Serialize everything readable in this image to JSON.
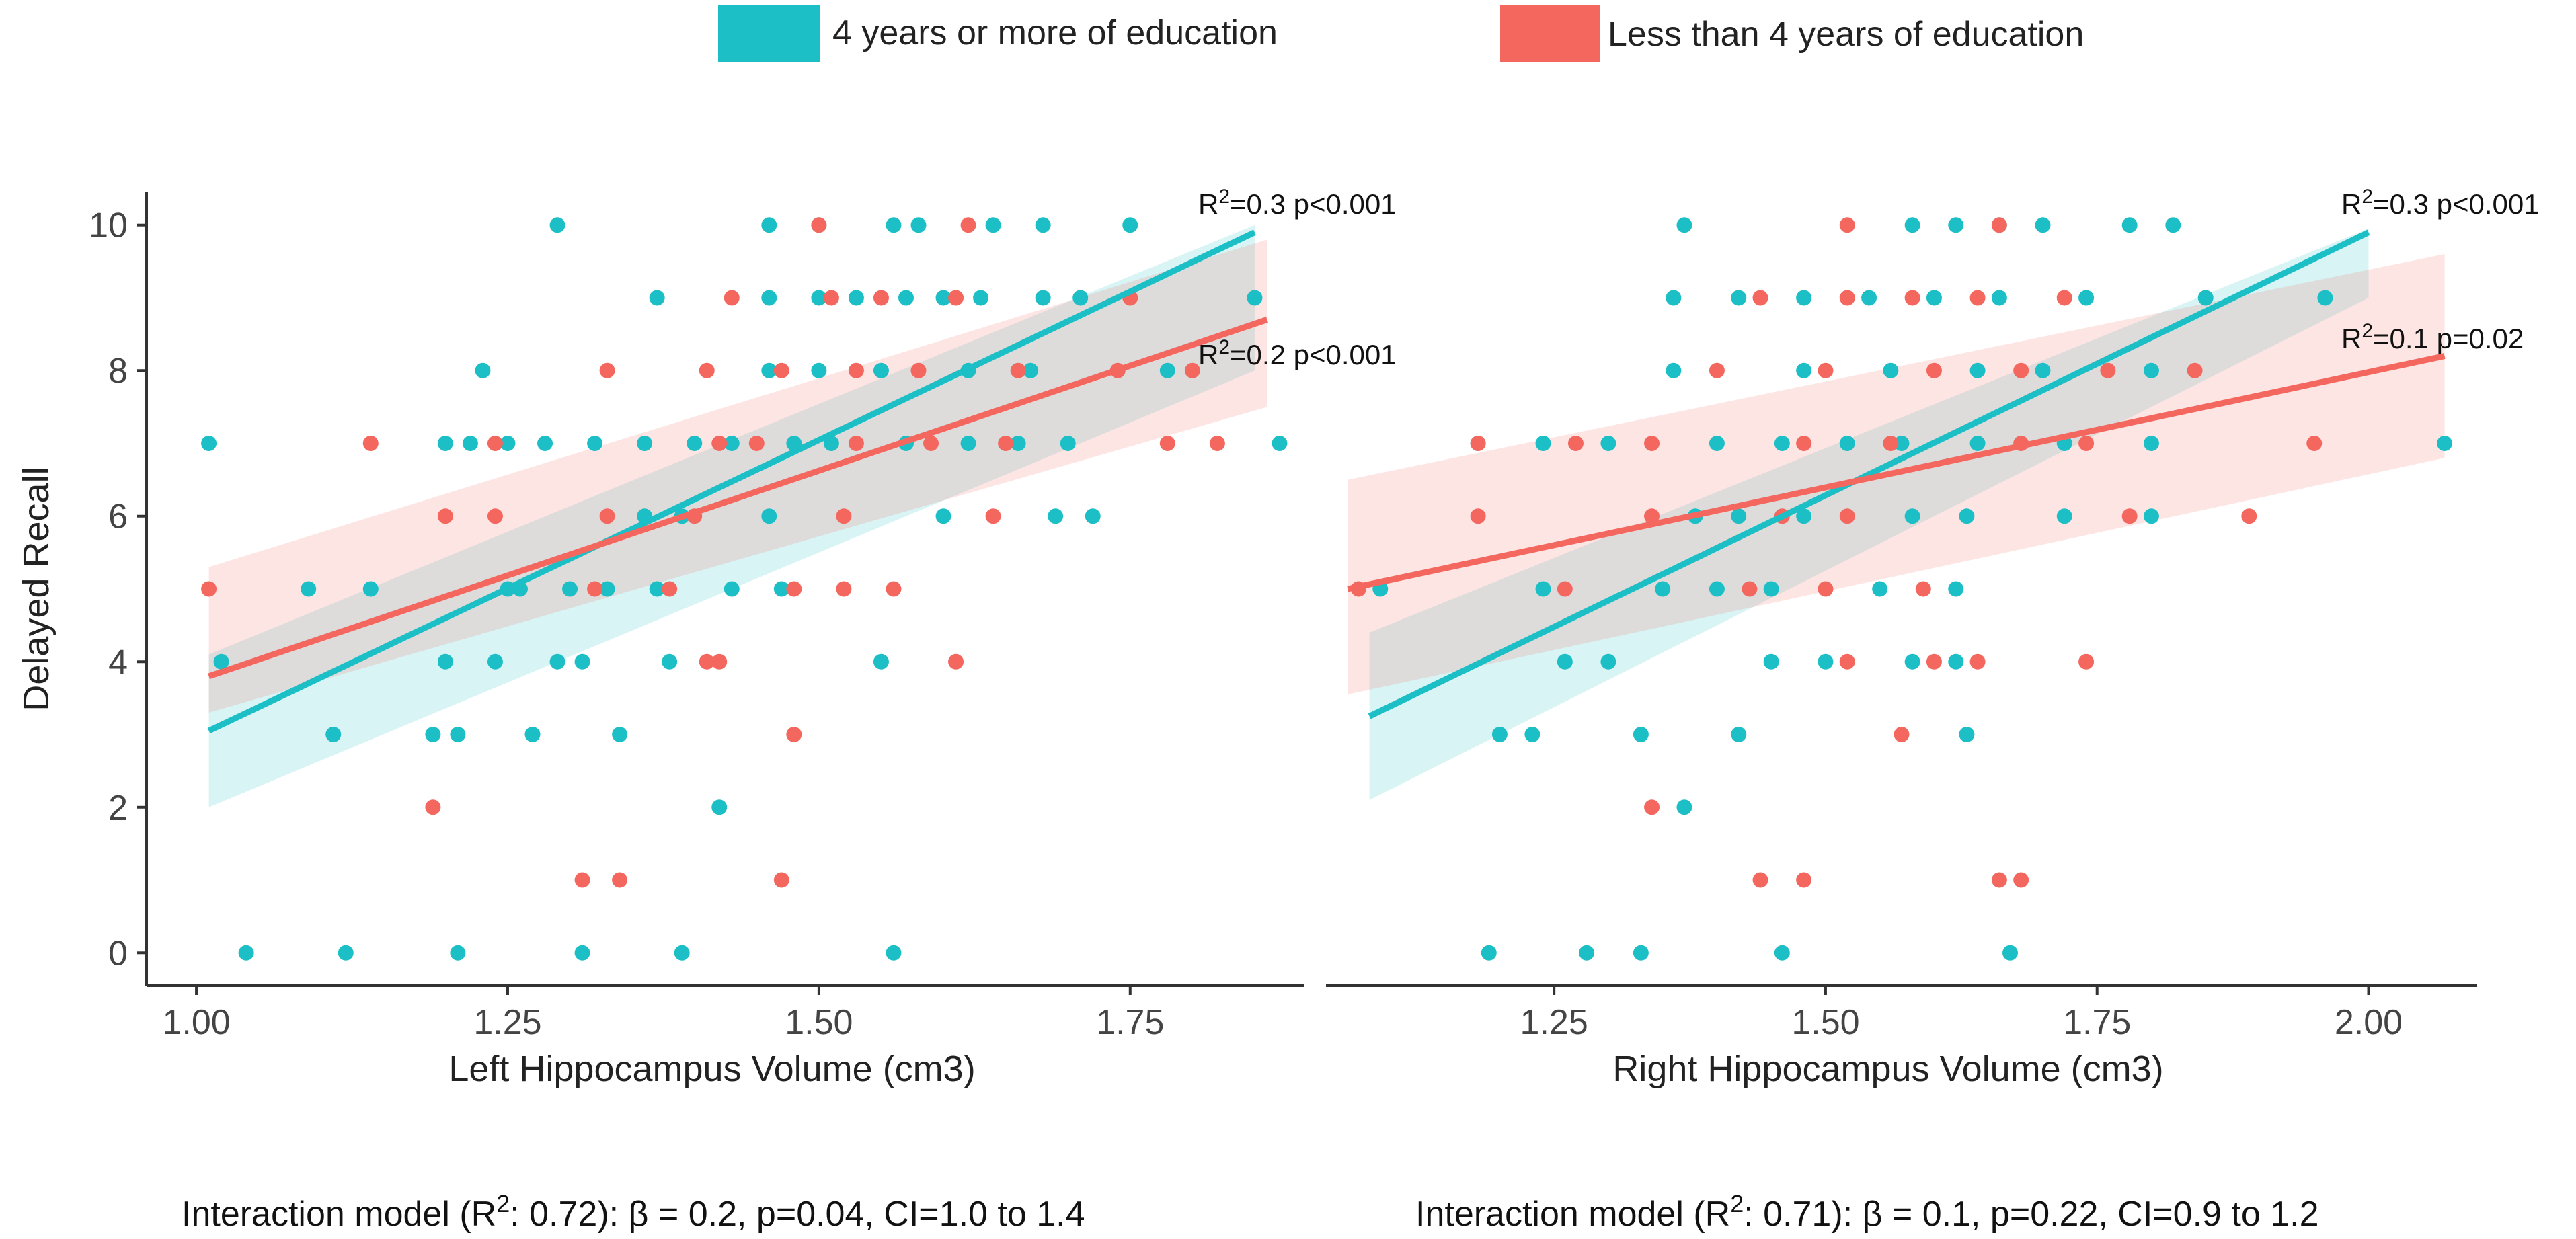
{
  "colors": {
    "edu_high": "#1cbfc5",
    "edu_low": "#f4675f",
    "axis": "#333333"
  },
  "legend": {
    "high_label": "4 years or more of education",
    "low_label": "Less than 4 years of education"
  },
  "footnotes": {
    "left": {
      "prefix": "Interaction model (R",
      "sup": "2",
      "suffix": ": 0.72): β = 0.2, p=0.04, CI=1.0 to 1.4"
    },
    "right": {
      "prefix": "Interaction model (R",
      "sup": "2",
      "suffix": ": 0.71): β = 0.1, p=0.22, CI=0.9 to 1.2"
    }
  },
  "chart_data": [
    {
      "type": "scatter",
      "title": "",
      "xlabel": "Left Hippocampus Volume (cm3)",
      "ylabel": "Delayed Recall",
      "xlim": [
        0.96,
        1.89
      ],
      "ylim": [
        -0.45,
        10.45
      ],
      "xticks": [
        "1.00",
        "1.25",
        "1.50",
        "1.75"
      ],
      "yticks": [
        "0",
        "2",
        "4",
        "6",
        "8",
        "10"
      ],
      "series": [
        {
          "name": "4 years or more of education",
          "fit": {
            "x": [
              1.01,
              1.85
            ],
            "y": [
              3.05,
              9.9
            ],
            "ci_lo": [
              2.0,
              8.0
            ],
            "ci_hi": [
              4.1,
              10.0
            ]
          },
          "annotation": {
            "pre": "R",
            "sup": "2",
            "post": "=0.3 p<0.001"
          },
          "points": [
            [
              1.04,
              0
            ],
            [
              1.12,
              0
            ],
            [
              1.21,
              0
            ],
            [
              1.31,
              0
            ],
            [
              1.39,
              0
            ],
            [
              1.56,
              0
            ],
            [
              1.42,
              2
            ],
            [
              1.11,
              3
            ],
            [
              1.19,
              3
            ],
            [
              1.21,
              3
            ],
            [
              1.27,
              3
            ],
            [
              1.34,
              3
            ],
            [
              1.2,
              4
            ],
            [
              1.24,
              4
            ],
            [
              1.29,
              4
            ],
            [
              1.31,
              4
            ],
            [
              1.38,
              4
            ],
            [
              1.55,
              4
            ],
            [
              1.02,
              4
            ],
            [
              1.09,
              5
            ],
            [
              1.14,
              5
            ],
            [
              1.26,
              5
            ],
            [
              1.3,
              5
            ],
            [
              1.33,
              5
            ],
            [
              1.37,
              5
            ],
            [
              1.43,
              5
            ],
            [
              1.47,
              5
            ],
            [
              1.25,
              5
            ],
            [
              1.36,
              6
            ],
            [
              1.39,
              6
            ],
            [
              1.46,
              6
            ],
            [
              1.6,
              6
            ],
            [
              1.69,
              6
            ],
            [
              1.72,
              6
            ],
            [
              1.01,
              7
            ],
            [
              1.2,
              7
            ],
            [
              1.22,
              7
            ],
            [
              1.25,
              7
            ],
            [
              1.28,
              7
            ],
            [
              1.32,
              7
            ],
            [
              1.36,
              7
            ],
            [
              1.4,
              7
            ],
            [
              1.43,
              7
            ],
            [
              1.48,
              7
            ],
            [
              1.51,
              7
            ],
            [
              1.57,
              7
            ],
            [
              1.62,
              7
            ],
            [
              1.66,
              7
            ],
            [
              1.7,
              7
            ],
            [
              1.87,
              7
            ],
            [
              1.23,
              8
            ],
            [
              1.46,
              8
            ],
            [
              1.5,
              8
            ],
            [
              1.55,
              8
            ],
            [
              1.62,
              8
            ],
            [
              1.67,
              8
            ],
            [
              1.78,
              8
            ],
            [
              1.37,
              9
            ],
            [
              1.46,
              9
            ],
            [
              1.5,
              9
            ],
            [
              1.53,
              9
            ],
            [
              1.57,
              9
            ],
            [
              1.6,
              9
            ],
            [
              1.63,
              9
            ],
            [
              1.68,
              9
            ],
            [
              1.71,
              9
            ],
            [
              1.85,
              9
            ],
            [
              1.29,
              10
            ],
            [
              1.46,
              10
            ],
            [
              1.5,
              10
            ],
            [
              1.56,
              10
            ],
            [
              1.58,
              10
            ],
            [
              1.64,
              10
            ],
            [
              1.68,
              10
            ],
            [
              1.75,
              10
            ]
          ]
        },
        {
          "name": "Less than 4 years of education",
          "fit": {
            "x": [
              1.01,
              1.86
            ],
            "y": [
              3.8,
              8.7
            ],
            "ci_lo": [
              3.3,
              7.5
            ],
            "ci_hi": [
              5.3,
              9.8
            ]
          },
          "annotation": {
            "pre": "R",
            "sup": "2",
            "post": "=0.2 p<0.001"
          },
          "points": [
            [
              1.19,
              2
            ],
            [
              1.31,
              1
            ],
            [
              1.34,
              1
            ],
            [
              1.47,
              1
            ],
            [
              1.48,
              3
            ],
            [
              1.41,
              4
            ],
            [
              1.42,
              4
            ],
            [
              1.61,
              4
            ],
            [
              1.01,
              5
            ],
            [
              1.32,
              5
            ],
            [
              1.38,
              5
            ],
            [
              1.48,
              5
            ],
            [
              1.52,
              5
            ],
            [
              1.56,
              5
            ],
            [
              1.2,
              6
            ],
            [
              1.24,
              6
            ],
            [
              1.33,
              6
            ],
            [
              1.4,
              6
            ],
            [
              1.52,
              6
            ],
            [
              1.64,
              6
            ],
            [
              1.14,
              7
            ],
            [
              1.24,
              7
            ],
            [
              1.42,
              7
            ],
            [
              1.45,
              7
            ],
            [
              1.53,
              7
            ],
            [
              1.59,
              7
            ],
            [
              1.65,
              7
            ],
            [
              1.78,
              7
            ],
            [
              1.82,
              7
            ],
            [
              1.33,
              8
            ],
            [
              1.41,
              8
            ],
            [
              1.47,
              8
            ],
            [
              1.53,
              8
            ],
            [
              1.58,
              8
            ],
            [
              1.66,
              8
            ],
            [
              1.74,
              8
            ],
            [
              1.8,
              8
            ],
            [
              1.43,
              9
            ],
            [
              1.51,
              9
            ],
            [
              1.55,
              9
            ],
            [
              1.61,
              9
            ],
            [
              1.75,
              9
            ],
            [
              1.5,
              10
            ],
            [
              1.62,
              10
            ]
          ]
        }
      ]
    },
    {
      "type": "scatter",
      "title": "",
      "xlabel": "Right Hippocampus Volume (cm3)",
      "ylabel": "",
      "xlim": [
        1.04,
        2.1
      ],
      "ylim": [
        -0.45,
        10.45
      ],
      "xticks": [
        "1.25",
        "1.50",
        "1.75",
        "2.00"
      ],
      "yticks": [],
      "series": [
        {
          "name": "4 years or more of education",
          "fit": {
            "x": [
              1.08,
              2.0
            ],
            "y": [
              3.25,
              9.9
            ],
            "ci_lo": [
              2.1,
              9.0
            ],
            "ci_hi": [
              4.4,
              9.95
            ]
          },
          "annotation": {
            "pre": "R",
            "sup": "2",
            "post": "=0.3 p<0.001"
          },
          "points": [
            [
              1.19,
              0
            ],
            [
              1.28,
              0
            ],
            [
              1.33,
              0
            ],
            [
              1.46,
              0
            ],
            [
              1.67,
              0
            ],
            [
              1.37,
              2
            ],
            [
              1.2,
              3
            ],
            [
              1.23,
              3
            ],
            [
              1.33,
              3
            ],
            [
              1.42,
              3
            ],
            [
              1.63,
              3
            ],
            [
              1.26,
              4
            ],
            [
              1.3,
              4
            ],
            [
              1.45,
              4
            ],
            [
              1.5,
              4
            ],
            [
              1.58,
              4
            ],
            [
              1.62,
              4
            ],
            [
              1.09,
              5
            ],
            [
              1.24,
              5
            ],
            [
              1.35,
              5
            ],
            [
              1.4,
              5
            ],
            [
              1.45,
              5
            ],
            [
              1.55,
              5
            ],
            [
              1.62,
              5
            ],
            [
              1.38,
              6
            ],
            [
              1.42,
              6
            ],
            [
              1.48,
              6
            ],
            [
              1.58,
              6
            ],
            [
              1.63,
              6
            ],
            [
              1.72,
              6
            ],
            [
              1.8,
              6
            ],
            [
              1.18,
              7
            ],
            [
              1.24,
              7
            ],
            [
              1.3,
              7
            ],
            [
              1.4,
              7
            ],
            [
              1.46,
              7
            ],
            [
              1.52,
              7
            ],
            [
              1.57,
              7
            ],
            [
              1.64,
              7
            ],
            [
              1.72,
              7
            ],
            [
              1.8,
              7
            ],
            [
              2.07,
              7
            ],
            [
              1.36,
              8
            ],
            [
              1.48,
              8
            ],
            [
              1.56,
              8
            ],
            [
              1.64,
              8
            ],
            [
              1.7,
              8
            ],
            [
              1.8,
              8
            ],
            [
              1.36,
              9
            ],
            [
              1.42,
              9
            ],
            [
              1.48,
              9
            ],
            [
              1.54,
              9
            ],
            [
              1.6,
              9
            ],
            [
              1.66,
              9
            ],
            [
              1.74,
              9
            ],
            [
              1.85,
              9
            ],
            [
              1.96,
              9
            ],
            [
              1.37,
              10
            ],
            [
              1.58,
              10
            ],
            [
              1.62,
              10
            ],
            [
              1.66,
              10
            ],
            [
              1.7,
              10
            ],
            [
              1.78,
              10
            ],
            [
              1.82,
              10
            ]
          ]
        },
        {
          "name": "Less than 4 years of education",
          "fit": {
            "x": [
              1.06,
              2.07
            ],
            "y": [
              5.0,
              8.2
            ],
            "ci_lo": [
              3.55,
              6.8
            ],
            "ci_hi": [
              6.5,
              9.6
            ]
          },
          "annotation": {
            "pre": "R",
            "sup": "2",
            "post": "=0.1 p=0.02"
          },
          "points": [
            [
              1.07,
              5
            ],
            [
              1.34,
              2
            ],
            [
              1.44,
              1
            ],
            [
              1.48,
              1
            ],
            [
              1.66,
              1
            ],
            [
              1.68,
              1
            ],
            [
              1.57,
              3
            ],
            [
              1.52,
              4
            ],
            [
              1.6,
              4
            ],
            [
              1.64,
              4
            ],
            [
              1.74,
              4
            ],
            [
              1.26,
              5
            ],
            [
              1.43,
              5
            ],
            [
              1.5,
              5
            ],
            [
              1.59,
              5
            ],
            [
              1.18,
              6
            ],
            [
              1.34,
              6
            ],
            [
              1.46,
              6
            ],
            [
              1.52,
              6
            ],
            [
              1.78,
              6
            ],
            [
              1.89,
              6
            ],
            [
              1.18,
              7
            ],
            [
              1.27,
              7
            ],
            [
              1.34,
              7
            ],
            [
              1.48,
              7
            ],
            [
              1.56,
              7
            ],
            [
              1.68,
              7
            ],
            [
              1.74,
              7
            ],
            [
              1.95,
              7
            ],
            [
              1.4,
              8
            ],
            [
              1.5,
              8
            ],
            [
              1.6,
              8
            ],
            [
              1.68,
              8
            ],
            [
              1.76,
              8
            ],
            [
              1.84,
              8
            ],
            [
              1.44,
              9
            ],
            [
              1.52,
              9
            ],
            [
              1.58,
              9
            ],
            [
              1.64,
              9
            ],
            [
              1.72,
              9
            ],
            [
              1.52,
              10
            ],
            [
              1.66,
              10
            ]
          ]
        }
      ]
    }
  ]
}
